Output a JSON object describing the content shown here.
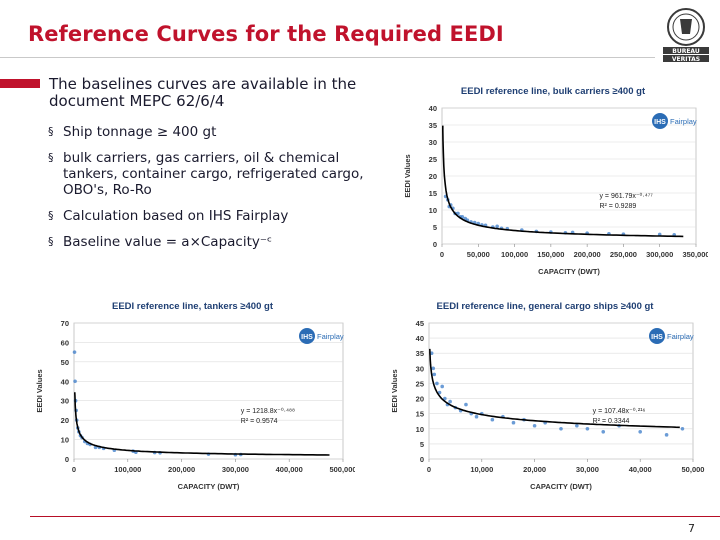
{
  "slide": {
    "title": "Reference Curves for the Required EEDI",
    "intro": "The baselines curves are available in the document MEPC 62/6/4",
    "bullets": [
      "Ship tonnage ≥ 400 gt",
      "bulk carriers, gas carriers, oil & chemical tankers, container cargo, refrigerated cargo, OBO's, Ro-Ro",
      "Calculation based on IHS Fairplay",
      "Baseline value = a×Capacity⁻ᶜ"
    ],
    "bullet_marker": "§",
    "page_number": "7"
  },
  "logo": {
    "line1": "BUREAU",
    "line2": "VERITAS",
    "year": "1828",
    "color": "#3a3a3a"
  },
  "colors": {
    "accent": "#c0122c",
    "points": "#3a7bc8",
    "curve": "#000000",
    "grid": "#dddddd",
    "chart_title": "#1f3f73"
  },
  "chart_data": [
    {
      "type": "scatter",
      "title": "EEDI reference line, bulk carriers ≥400 gt",
      "xlabel": "CAPACITY (DWT)",
      "ylabel": "EEDI Values",
      "x_ticks": [
        "0",
        "50,000",
        "100,000",
        "150,000",
        "200,000",
        "250,000",
        "300,000",
        "350,000"
      ],
      "y_ticks": [
        "0",
        "5",
        "10",
        "15",
        "20",
        "25",
        "30",
        "35",
        "40"
      ],
      "xlim": [
        0,
        350000
      ],
      "ylim": [
        0,
        40
      ],
      "grid": true,
      "fit": {
        "a": 961.79,
        "c": 0.477,
        "equation": "y = 961.79x⁻⁰·⁴⁷⁷",
        "r2": "R² = 0.9289"
      },
      "watermark": "Fairplay",
      "points": [
        [
          5000,
          14
        ],
        [
          8000,
          13
        ],
        [
          10000,
          11
        ],
        [
          12000,
          11.5
        ],
        [
          15000,
          10.5
        ],
        [
          18000,
          9
        ],
        [
          22000,
          9
        ],
        [
          25000,
          8
        ],
        [
          28000,
          8
        ],
        [
          32000,
          7.5
        ],
        [
          35000,
          7
        ],
        [
          40000,
          6.5
        ],
        [
          45000,
          6.3
        ],
        [
          50000,
          6
        ],
        [
          55000,
          5.6
        ],
        [
          60000,
          5.5
        ],
        [
          70000,
          5
        ],
        [
          76000,
          5.2
        ],
        [
          82000,
          4.6
        ],
        [
          90000,
          4.5
        ],
        [
          110000,
          4.1
        ],
        [
          130000,
          3.7
        ],
        [
          150000,
          3.5
        ],
        [
          170000,
          3.3
        ],
        [
          180000,
          3.4
        ],
        [
          200000,
          3.2
        ],
        [
          230000,
          3
        ],
        [
          250000,
          2.9
        ],
        [
          300000,
          2.8
        ],
        [
          320000,
          2.7
        ]
      ]
    },
    {
      "type": "scatter",
      "title": "EEDI reference line, tankers ≥400 gt",
      "xlabel": "CAPACITY (DWT)",
      "ylabel": "EEDI Values",
      "x_ticks": [
        "0",
        "100,000",
        "200,000",
        "300,000",
        "400,000",
        "500,000"
      ],
      "y_ticks": [
        "0",
        "10",
        "20",
        "30",
        "40",
        "50",
        "60",
        "70"
      ],
      "xlim": [
        0,
        500000
      ],
      "ylim": [
        0,
        70
      ],
      "grid": true,
      "fit": {
        "a": 1218.8,
        "c": 0.488,
        "equation": "y = 1218.8x⁻⁰·⁴⁸⁸",
        "r2": "R² = 0.9574"
      },
      "watermark": "Fairplay",
      "points": [
        [
          1000,
          55
        ],
        [
          2000,
          40
        ],
        [
          3000,
          30
        ],
        [
          4000,
          25
        ],
        [
          5000,
          20
        ],
        [
          7000,
          16
        ],
        [
          9000,
          14
        ],
        [
          12000,
          12
        ],
        [
          15000,
          11
        ],
        [
          20000,
          9
        ],
        [
          25000,
          8
        ],
        [
          30000,
          7.5
        ],
        [
          40000,
          6
        ],
        [
          47000,
          6
        ],
        [
          55000,
          5.5
        ],
        [
          75000,
          4.5
        ],
        [
          110000,
          4
        ],
        [
          115000,
          3.5
        ],
        [
          150000,
          3.3
        ],
        [
          160000,
          3.2
        ],
        [
          250000,
          2.5
        ],
        [
          300000,
          2.2
        ],
        [
          310000,
          2.3
        ]
      ]
    },
    {
      "type": "scatter",
      "title": "EEDI reference line, general cargo ships ≥400 gt",
      "xlabel": "CAPACITY (DWT)",
      "ylabel": "EEDI Values",
      "x_ticks": [
        "0",
        "10,000",
        "20,000",
        "30,000",
        "40,000",
        "50,000"
      ],
      "y_ticks": [
        "0",
        "5",
        "10",
        "15",
        "20",
        "25",
        "30",
        "35",
        "40",
        "45"
      ],
      "xlim": [
        0,
        50000
      ],
      "ylim": [
        0,
        45
      ],
      "grid": true,
      "fit": {
        "a": 107.48,
        "c": 0.216,
        "equation": "y = 107.48x⁻⁰·²¹⁶",
        "r2": "R² = 0.3344"
      },
      "watermark": "Fairplay",
      "points": [
        [
          500,
          35
        ],
        [
          800,
          30
        ],
        [
          1000,
          28
        ],
        [
          1500,
          25
        ],
        [
          2000,
          22
        ],
        [
          2500,
          24
        ],
        [
          3000,
          20
        ],
        [
          3500,
          18
        ],
        [
          4000,
          19
        ],
        [
          5000,
          17
        ],
        [
          6000,
          16
        ],
        [
          7000,
          18
        ],
        [
          8000,
          15
        ],
        [
          9000,
          14
        ],
        [
          10000,
          15
        ],
        [
          12000,
          13
        ],
        [
          14000,
          14
        ],
        [
          16000,
          12
        ],
        [
          18000,
          13
        ],
        [
          20000,
          11
        ],
        [
          22000,
          12
        ],
        [
          25000,
          10
        ],
        [
          28000,
          11
        ],
        [
          30000,
          10
        ],
        [
          33000,
          9
        ],
        [
          36000,
          11
        ],
        [
          40000,
          9
        ],
        [
          45000,
          8
        ],
        [
          48000,
          10
        ]
      ]
    }
  ]
}
